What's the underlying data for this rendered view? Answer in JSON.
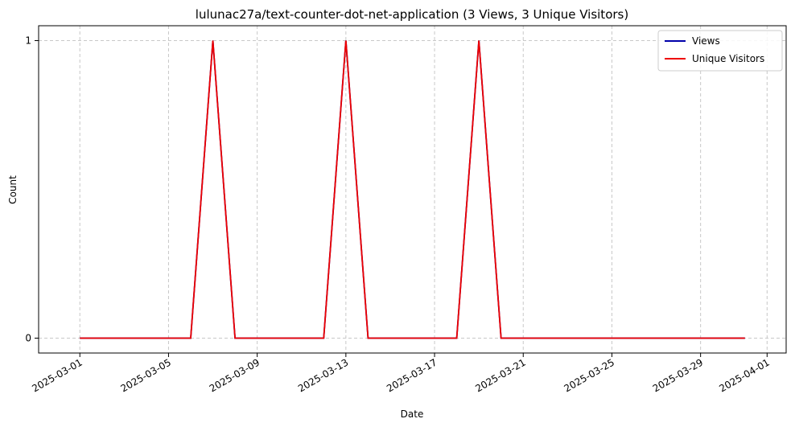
{
  "chart_data": {
    "type": "line",
    "title": "lulunac27a/text-counter-dot-net-application (3 Views, 3 Unique Visitors)",
    "xlabel": "Date",
    "ylabel": "Count",
    "x": [
      "2025-03-01",
      "2025-03-02",
      "2025-03-03",
      "2025-03-04",
      "2025-03-05",
      "2025-03-06",
      "2025-03-07",
      "2025-03-08",
      "2025-03-09",
      "2025-03-10",
      "2025-03-11",
      "2025-03-12",
      "2025-03-13",
      "2025-03-14",
      "2025-03-15",
      "2025-03-16",
      "2025-03-17",
      "2025-03-18",
      "2025-03-19",
      "2025-03-20",
      "2025-03-21",
      "2025-03-22",
      "2025-03-23",
      "2025-03-24",
      "2025-03-25",
      "2025-03-26",
      "2025-03-27",
      "2025-03-28",
      "2025-03-29",
      "2025-03-30",
      "2025-03-31"
    ],
    "series": [
      {
        "name": "Views",
        "color": "#0000aa",
        "values": [
          0,
          0,
          0,
          0,
          0,
          0,
          1,
          0,
          0,
          0,
          0,
          0,
          1,
          0,
          0,
          0,
          0,
          0,
          1,
          0,
          0,
          0,
          0,
          0,
          0,
          0,
          0,
          0,
          0,
          0,
          0
        ]
      },
      {
        "name": "Unique Visitors",
        "color": "#ee0000",
        "values": [
          0,
          0,
          0,
          0,
          0,
          0,
          1,
          0,
          0,
          0,
          0,
          0,
          1,
          0,
          0,
          0,
          0,
          0,
          1,
          0,
          0,
          0,
          0,
          0,
          0,
          0,
          0,
          0,
          0,
          0,
          0
        ]
      }
    ],
    "x_ticks": [
      "2025-03-01",
      "2025-03-05",
      "2025-03-09",
      "2025-03-13",
      "2025-03-17",
      "2025-03-21",
      "2025-03-25",
      "2025-03-29",
      "2025-04-01"
    ],
    "y_ticks": [
      0,
      1
    ],
    "xlim": [
      "2025-02-29.5",
      "2025-04-01.5"
    ],
    "ylim": [
      -0.05,
      1.05
    ],
    "grid": true,
    "legend": "top-right"
  }
}
